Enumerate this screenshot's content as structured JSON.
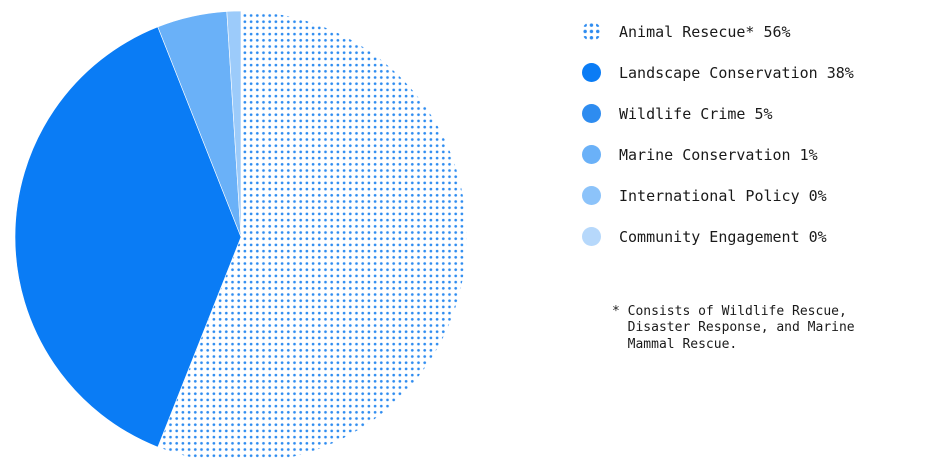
{
  "chart_data": {
    "type": "pie",
    "slices": [
      {
        "label": "Animal Resecue* 56%",
        "value": 56,
        "color": "#2e8cf0",
        "pattern": "dots"
      },
      {
        "label": "Landscape Conservation 38%",
        "value": 38,
        "color": "#0a7cf5"
      },
      {
        "label": "Wildlife Crime 5%",
        "value": 5,
        "color": "#6ab1f8"
      },
      {
        "label": "Marine Conservation 1%",
        "value": 1,
        "color": "#9ccbfa"
      },
      {
        "label": "International Policy 0%",
        "value": 0,
        "color": "#b6d8fb"
      },
      {
        "label": "Community Engagement 0%",
        "value": 0,
        "color": "#cfe5fc"
      }
    ],
    "legend_colors": [
      "#2e8cf0",
      "#0a7cf5",
      "#2e8cf0",
      "#6ab1f8",
      "#8cc3fa",
      "#b6d8fb"
    ],
    "legend_position": "right",
    "footnote": "* Consists of Wildlife Rescue,\n  Disaster Response, and Marine\n  Mammal Rescue."
  }
}
